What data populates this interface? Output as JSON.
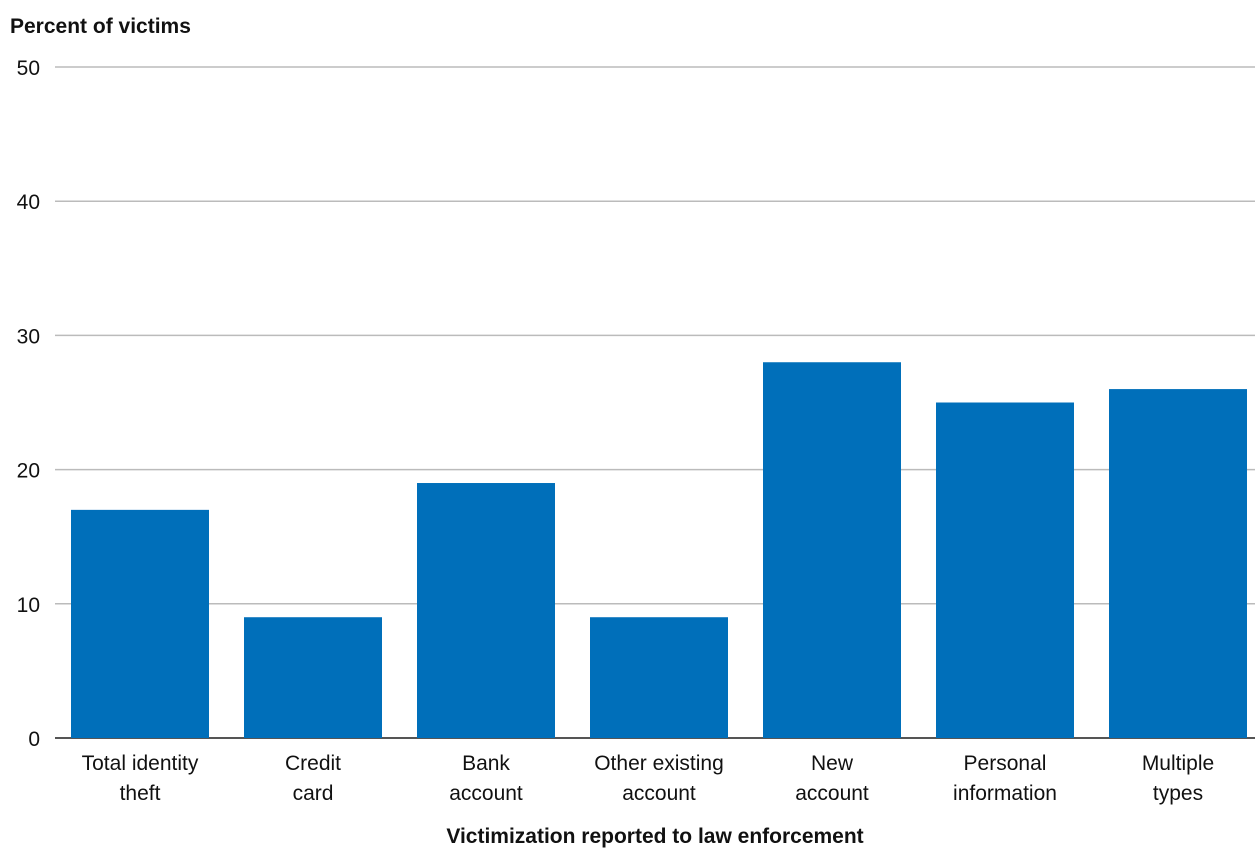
{
  "chart_data": {
    "type": "bar",
    "y_axis_label": "Percent of victims",
    "x_axis_label": "Victimization reported to law enforcement",
    "categories": [
      [
        "Total identity",
        "theft"
      ],
      [
        "Credit",
        "card"
      ],
      [
        "Bank",
        "account"
      ],
      [
        "Other existing",
        "account"
      ],
      [
        "New",
        "account"
      ],
      [
        "Personal",
        "information"
      ],
      [
        "Multiple",
        "types"
      ]
    ],
    "values": [
      17,
      9,
      19,
      9,
      28,
      25,
      26
    ],
    "color": "#006fba",
    "ylim": [
      0,
      50
    ],
    "yticks": [
      0,
      10,
      20,
      30,
      40,
      50
    ],
    "grid": true
  }
}
